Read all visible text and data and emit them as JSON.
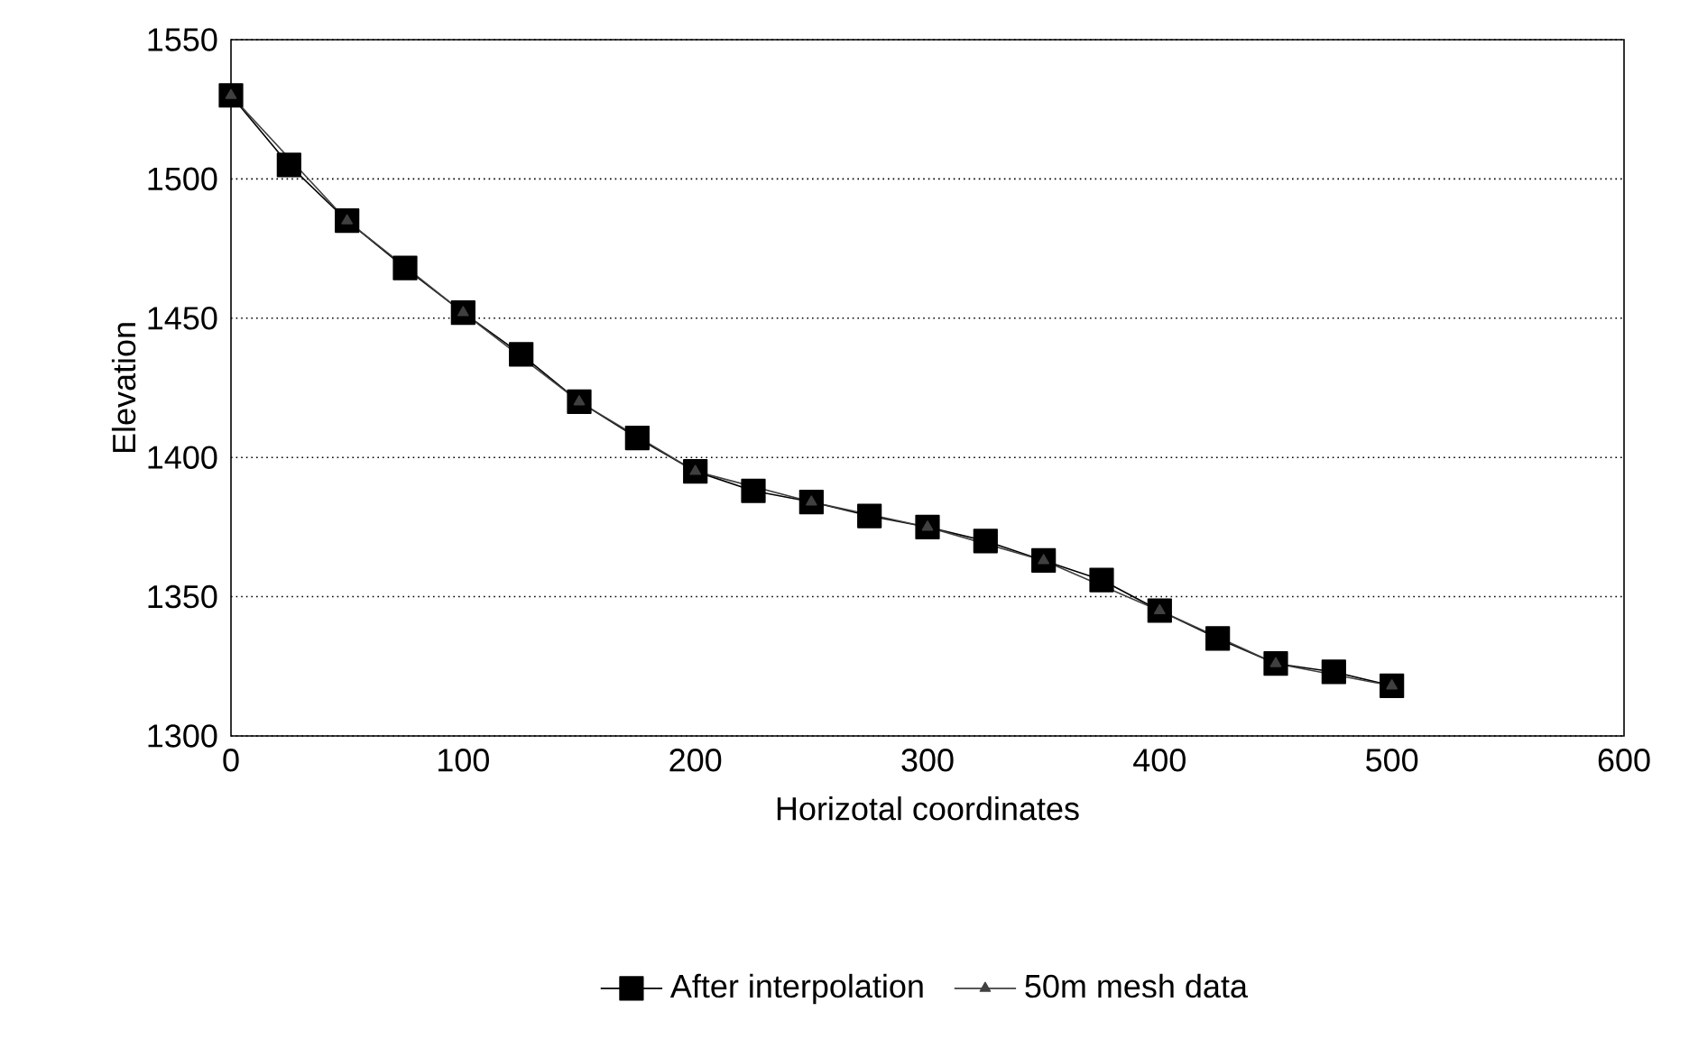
{
  "chart_data": {
    "type": "line",
    "xlabel": "Horizotal coordinates",
    "ylabel": "Elevation",
    "xlim": [
      0,
      600
    ],
    "xticks": [
      0,
      100,
      200,
      300,
      400,
      500,
      600
    ],
    "ylim": [
      1300,
      1550
    ],
    "yticks": [
      1300,
      1350,
      1400,
      1450,
      1500,
      1550
    ],
    "grid": "y",
    "legend": "bottom",
    "series": [
      {
        "name": "After interpolation",
        "color": "#000000",
        "marker": "square",
        "line_style": "solid",
        "x": [
          0,
          25,
          50,
          75,
          100,
          125,
          150,
          175,
          200,
          225,
          250,
          275,
          300,
          325,
          350,
          375,
          400,
          425,
          450,
          475,
          500
        ],
        "values": [
          1530,
          1505,
          1485,
          1468,
          1452,
          1437,
          1420,
          1407,
          1395,
          1388,
          1384,
          1379,
          1375,
          1370,
          1363,
          1356,
          1345,
          1335,
          1326,
          1323,
          1318
        ]
      },
      {
        "name": "50m mesh data",
        "color": "#404040",
        "marker": "triangle",
        "line_style": "solid",
        "x": [
          0,
          50,
          100,
          150,
          200,
          250,
          300,
          350,
          400,
          450,
          500
        ],
        "values": [
          1530,
          1485,
          1452,
          1420,
          1395,
          1384,
          1375,
          1363,
          1345,
          1326,
          1318
        ]
      }
    ]
  }
}
